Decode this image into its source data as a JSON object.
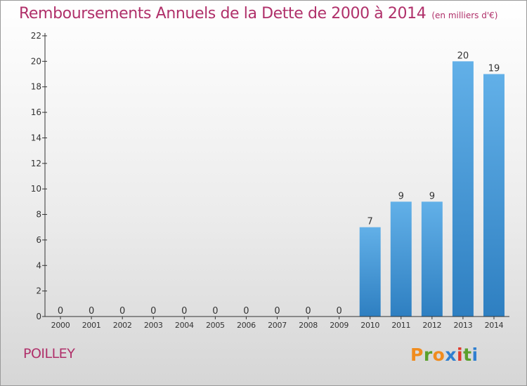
{
  "title": "Remboursements Annuels de la Dette de 2000 à 2014",
  "subtitle": "(en milliers d'€)",
  "commune": "POILLEY",
  "brand": {
    "letters": [
      "P",
      "r",
      "o",
      "x",
      "i",
      "t",
      "i"
    ],
    "colors": [
      "#f08c1e",
      "#5aa02c",
      "#f08c1e",
      "#2f7fd0",
      "#e23a2c",
      "#5aa02c",
      "#2f7fd0"
    ]
  },
  "colors": {
    "bar_top": "#62b0e8",
    "bar_bottom": "#2e7fc1",
    "title": "#b0306a",
    "axis": "#333333"
  },
  "chart_data": {
    "type": "bar",
    "categories": [
      "2000",
      "2001",
      "2002",
      "2003",
      "2004",
      "2005",
      "2006",
      "2007",
      "2008",
      "2009",
      "2010",
      "2011",
      "2012",
      "2013",
      "2014"
    ],
    "values": [
      0,
      0,
      0,
      0,
      0,
      0,
      0,
      0,
      0,
      0,
      7,
      9,
      9,
      20,
      19
    ],
    "title": "Remboursements Annuels de la Dette de 2000 à 2014",
    "subtitle": "(en milliers d'€)",
    "xlabel": "",
    "ylabel": "",
    "ylim": [
      0,
      22
    ],
    "yticks": [
      0,
      2,
      4,
      6,
      8,
      10,
      12,
      14,
      16,
      18,
      20,
      22
    ],
    "grid": false,
    "legend": "none",
    "data_labels": true
  }
}
